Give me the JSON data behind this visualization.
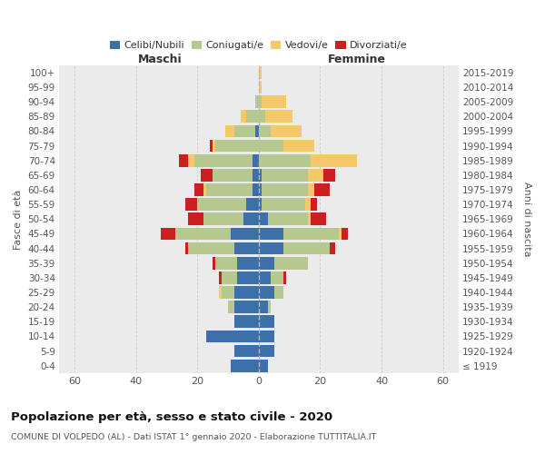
{
  "age_groups": [
    "100+",
    "95-99",
    "90-94",
    "85-89",
    "80-84",
    "75-79",
    "70-74",
    "65-69",
    "60-64",
    "55-59",
    "50-54",
    "45-49",
    "40-44",
    "35-39",
    "30-34",
    "25-29",
    "20-24",
    "15-19",
    "10-14",
    "5-9",
    "0-4"
  ],
  "birth_years": [
    "≤ 1919",
    "1920-1924",
    "1925-1929",
    "1930-1934",
    "1935-1939",
    "1940-1944",
    "1945-1949",
    "1950-1954",
    "1955-1959",
    "1960-1964",
    "1965-1969",
    "1970-1974",
    "1975-1979",
    "1980-1984",
    "1985-1989",
    "1990-1994",
    "1995-1999",
    "2000-2004",
    "2005-2009",
    "2010-2014",
    "2015-2019"
  ],
  "maschi": {
    "celibi": [
      0,
      0,
      0,
      0,
      1,
      0,
      2,
      2,
      2,
      4,
      5,
      9,
      8,
      7,
      7,
      8,
      8,
      8,
      17,
      8,
      9
    ],
    "coniugati": [
      0,
      0,
      1,
      4,
      7,
      14,
      19,
      13,
      15,
      16,
      13,
      18,
      15,
      7,
      5,
      4,
      2,
      0,
      0,
      0,
      0
    ],
    "vedovi": [
      0,
      0,
      0,
      2,
      3,
      1,
      2,
      0,
      1,
      0,
      0,
      0,
      0,
      0,
      0,
      1,
      0,
      0,
      0,
      0,
      0
    ],
    "divorziati": [
      0,
      0,
      0,
      0,
      0,
      1,
      3,
      4,
      3,
      4,
      5,
      5,
      1,
      1,
      1,
      0,
      0,
      0,
      0,
      0,
      0
    ]
  },
  "femmine": {
    "nubili": [
      0,
      0,
      0,
      0,
      0,
      0,
      0,
      1,
      1,
      1,
      3,
      8,
      8,
      5,
      4,
      5,
      3,
      5,
      5,
      5,
      3
    ],
    "coniugate": [
      0,
      0,
      1,
      2,
      4,
      8,
      17,
      15,
      15,
      14,
      13,
      18,
      15,
      11,
      4,
      3,
      1,
      0,
      0,
      0,
      0
    ],
    "vedove": [
      1,
      1,
      8,
      9,
      10,
      10,
      15,
      5,
      2,
      2,
      1,
      1,
      0,
      0,
      0,
      0,
      0,
      0,
      0,
      0,
      0
    ],
    "divorziate": [
      0,
      0,
      0,
      0,
      0,
      0,
      0,
      4,
      5,
      2,
      5,
      2,
      2,
      0,
      1,
      0,
      0,
      0,
      0,
      0,
      0
    ]
  },
  "colors": {
    "celibi": "#3d6fa8",
    "coniugati": "#b5c98e",
    "vedovi": "#f5c96a",
    "divorziati": "#cc2020"
  },
  "xlim": 65,
  "title": "Popolazione per età, sesso e stato civile - 2020",
  "subtitle": "COMUNE DI VOLPEDO (AL) - Dati ISTAT 1° gennaio 2020 - Elaborazione TUTTITALIA.IT",
  "ylabel_left": "Fasce di età",
  "ylabel_right": "Anni di nascita",
  "xlabel_maschi": "Maschi",
  "xlabel_femmine": "Femmine",
  "bg_color": "#ebebeb",
  "grid_color": "#cccccc",
  "fig_bg": "#ffffff"
}
